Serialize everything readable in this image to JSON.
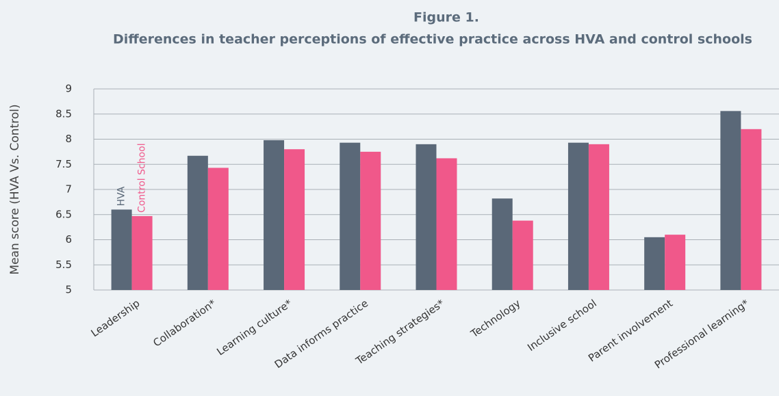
{
  "chart_data": {
    "type": "bar",
    "title": "Figure 1.",
    "subtitle": "Differences in teacher perceptions of effective practice across HVA and control schools",
    "y_label": "Mean score (HVA Vs. Control)",
    "categories": [
      "Leadership",
      "Collaboration*",
      "Learning culture*",
      "Data informs practice",
      "Teaching strategies*",
      "Technology",
      "Inclusive school",
      "Parent involvement",
      "Professional learning*"
    ],
    "series": [
      {
        "name": "HVA",
        "color": "#5a6878",
        "values": [
          6.6,
          7.67,
          7.98,
          7.93,
          7.9,
          6.82,
          7.93,
          6.05,
          8.56
        ]
      },
      {
        "name": "Control School",
        "color": "#f0588a",
        "values": [
          6.47,
          7.43,
          7.8,
          7.75,
          7.62,
          6.38,
          7.9,
          6.1,
          8.2
        ]
      }
    ],
    "ylim": [
      5,
      9
    ],
    "yticks": [
      5,
      5.5,
      6,
      6.5,
      7,
      7.5,
      8,
      8.5,
      9
    ],
    "grid": true
  }
}
